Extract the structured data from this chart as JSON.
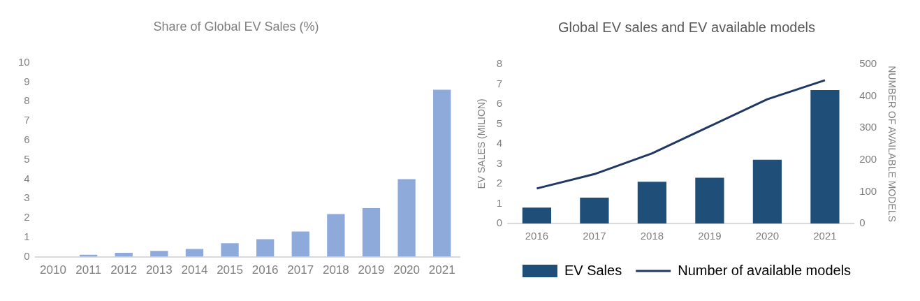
{
  "chart_data": [
    {
      "type": "bar",
      "title": "Share of Global EV Sales (%)",
      "categories": [
        "2010",
        "2011",
        "2012",
        "2013",
        "2014",
        "2015",
        "2016",
        "2017",
        "2018",
        "2019",
        "2020",
        "2021"
      ],
      "values": [
        0,
        0.1,
        0.2,
        0.3,
        0.4,
        0.7,
        0.9,
        1.3,
        2.2,
        2.5,
        4.0,
        8.6
      ],
      "color": "#8eaadb",
      "ylim": [
        0,
        10
      ],
      "yticks": [
        0,
        1,
        2,
        3,
        4,
        5,
        6,
        7,
        8,
        9,
        10
      ],
      "grid": false,
      "legend": false
    },
    {
      "type": "bar",
      "title": "Global EV sales and EV available models",
      "categories": [
        "2016",
        "2017",
        "2018",
        "2019",
        "2020",
        "2021"
      ],
      "ylabel": "EV SALES (MILION)",
      "y2label": "NUMBER OF AVAILABLE MODELS",
      "series": [
        {
          "name": "EV Sales",
          "type": "bar",
          "color": "#1f4e79",
          "values": [
            0.8,
            1.3,
            2.1,
            2.3,
            3.2,
            6.7
          ]
        },
        {
          "name": "Number of available models",
          "type": "line",
          "axis": "y2",
          "color": "#1f3864",
          "values": [
            110,
            155,
            220,
            305,
            390,
            450
          ]
        }
      ],
      "ylim": [
        0,
        8
      ],
      "yticks": [
        0,
        1,
        2,
        3,
        4,
        5,
        6,
        7,
        8
      ],
      "y2lim": [
        0,
        500
      ],
      "y2ticks": [
        0,
        100,
        200,
        300,
        400,
        500
      ],
      "grid": false,
      "legend": "bottom",
      "marker": "none",
      "line_style": "solid"
    }
  ]
}
